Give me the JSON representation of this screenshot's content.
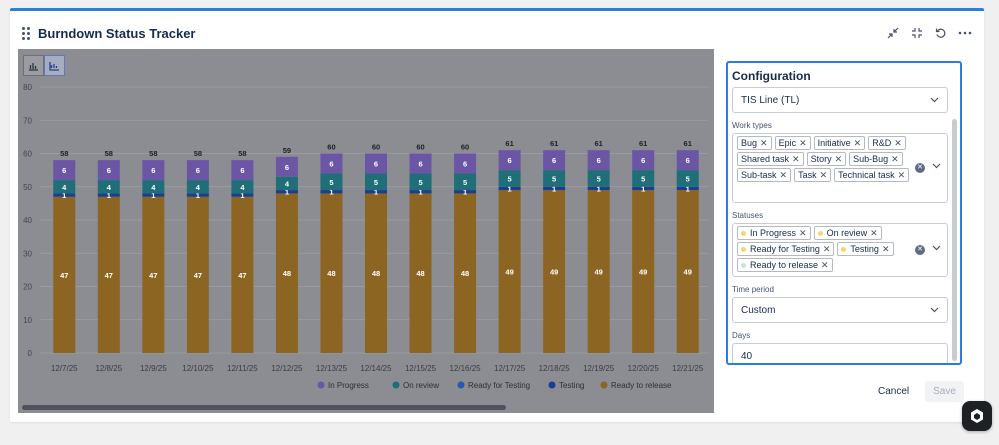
{
  "widget": {
    "title": "Burndown Status Tracker",
    "header_icons": [
      "minimize-icon",
      "shrink-icon",
      "refresh-icon",
      "more-icon"
    ]
  },
  "colors": {
    "accent": "#2a7de1",
    "in_progress": "#6b56a5",
    "on_review": "#1f6e78",
    "ready_for_testing": "#2457b3",
    "testing": "#1a3f8f",
    "ready_to_release": "#8d6522"
  },
  "chart_data": {
    "type": "bar",
    "stacked": true,
    "categories": [
      "12/7/25",
      "12/8/25",
      "12/9/25",
      "12/10/25",
      "12/11/25",
      "12/12/25",
      "12/13/25",
      "12/14/25",
      "12/15/25",
      "12/16/25",
      "12/17/25",
      "12/18/25",
      "12/19/25",
      "12/20/25",
      "12/21/25"
    ],
    "ylim": [
      0,
      80
    ],
    "yticks": [
      0,
      10,
      20,
      30,
      40,
      50,
      60,
      70,
      80
    ],
    "series": [
      {
        "name": "Ready to release",
        "color": "#8d6522",
        "values": [
          47,
          47,
          47,
          47,
          47,
          48,
          48,
          48,
          48,
          48,
          49,
          49,
          49,
          49,
          49
        ]
      },
      {
        "name": "Testing",
        "color": "#1a3f8f",
        "values": [
          1,
          1,
          1,
          1,
          1,
          1,
          1,
          1,
          1,
          1,
          1,
          1,
          1,
          1,
          1
        ]
      },
      {
        "name": "Ready for Testing",
        "color": "#2457b3",
        "values": [
          0,
          0,
          0,
          0,
          0,
          0,
          0,
          0,
          0,
          0,
          0,
          0,
          0,
          0,
          0
        ]
      },
      {
        "name": "On review",
        "color": "#1f6e78",
        "values": [
          4,
          4,
          4,
          4,
          4,
          4,
          5,
          5,
          5,
          5,
          5,
          5,
          5,
          5,
          5
        ]
      },
      {
        "name": "In Progress",
        "color": "#6b56a5",
        "values": [
          6,
          6,
          6,
          6,
          6,
          6,
          6,
          6,
          6,
          6,
          6,
          6,
          6,
          6,
          6
        ]
      }
    ],
    "totals": [
      58,
      58,
      58,
      58,
      58,
      59,
      60,
      60,
      60,
      60,
      61,
      61,
      61,
      61,
      61
    ],
    "legend": [
      "In Progress",
      "On review",
      "Ready for Testing",
      "Testing",
      "Ready to release"
    ],
    "legend_colors": [
      "#6b56a5",
      "#1f6e78",
      "#2457b3",
      "#1a3f8f",
      "#8d6522"
    ],
    "legend_position": "bottom"
  },
  "config": {
    "title": "Configuration",
    "board_select": "TIS Line (TL)",
    "work_types_label": "Work types",
    "work_types": [
      "Bug",
      "Epic",
      "Initiative",
      "R&D",
      "Shared task",
      "Story",
      "Sub-Bug",
      "Sub-task",
      "Task",
      "Technical task"
    ],
    "statuses_label": "Statuses",
    "statuses": [
      {
        "label": "In Progress",
        "color": "#f5d76e"
      },
      {
        "label": "On review",
        "color": "#f5d76e"
      },
      {
        "label": "Ready for Testing",
        "color": "#f5d76e"
      },
      {
        "label": "Testing",
        "color": "#f5d76e"
      },
      {
        "label": "Ready to release",
        "color": "#bfe8dc"
      }
    ],
    "time_period_label": "Time period",
    "time_period": "Custom",
    "days_label": "Days",
    "days": "40"
  },
  "footer": {
    "cancel": "Cancel",
    "save": "Save"
  }
}
